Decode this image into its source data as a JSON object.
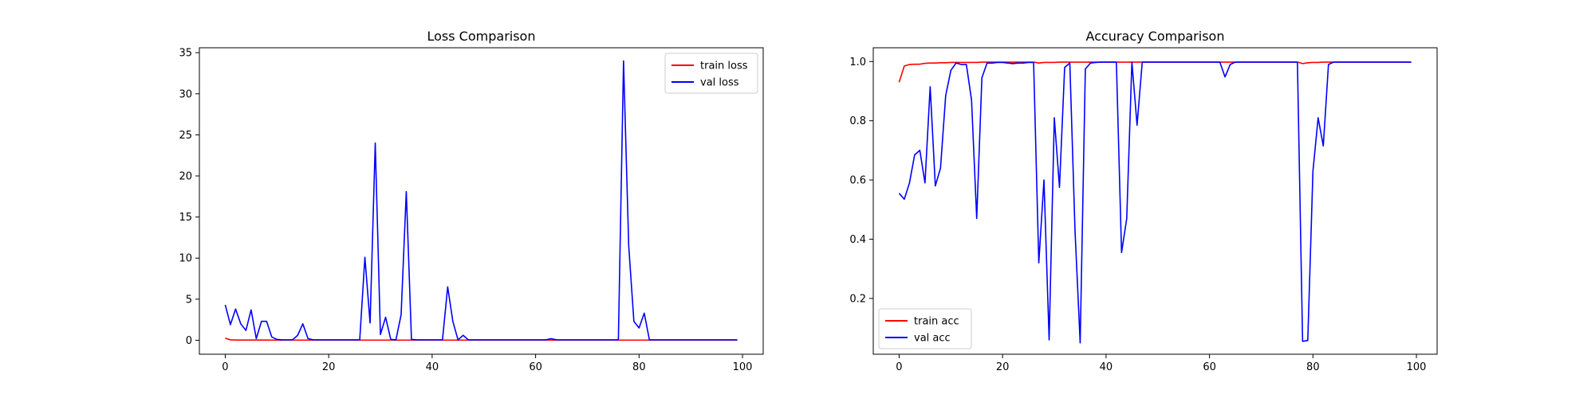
{
  "chart_data": [
    {
      "type": "line",
      "title": "Loss Comparison",
      "xlabel": "",
      "ylabel": "",
      "xlim": [
        -5,
        104
      ],
      "ylim": [
        -1.7,
        35.6
      ],
      "xticks": [
        0,
        20,
        40,
        60,
        80,
        100
      ],
      "yticks": [
        0,
        5,
        10,
        15,
        20,
        25,
        30,
        35
      ],
      "grid": false,
      "legend_position": "top-right",
      "series": [
        {
          "name": "train loss",
          "color": "#ff0000",
          "x": [
            0,
            1,
            2,
            3,
            4,
            5,
            6,
            7,
            8,
            9,
            10,
            11,
            12,
            13,
            14,
            15,
            16,
            17,
            18,
            19,
            20,
            21,
            22,
            23,
            24,
            25,
            26,
            27,
            28,
            29,
            30,
            31,
            32,
            33,
            34,
            35,
            36,
            37,
            38,
            39,
            40,
            41,
            42,
            43,
            44,
            45,
            46,
            47,
            48,
            49,
            50,
            51,
            52,
            53,
            54,
            55,
            56,
            57,
            58,
            59,
            60,
            61,
            62,
            63,
            64,
            65,
            66,
            67,
            68,
            69,
            70,
            71,
            72,
            73,
            74,
            75,
            76,
            77,
            78,
            79,
            80,
            81,
            82,
            83,
            84,
            85,
            86,
            87,
            88,
            89,
            90,
            91,
            92,
            93,
            94,
            95,
            96,
            97,
            98,
            99
          ],
          "y": [
            0.25,
            0.05,
            0.03,
            0.03,
            0.03,
            0.03,
            0.03,
            0.03,
            0.03,
            0.02,
            0.02,
            0.02,
            0.02,
            0.02,
            0.02,
            0.02,
            0.02,
            0.02,
            0.02,
            0.02,
            0.02,
            0.02,
            0.02,
            0.02,
            0.02,
            0.02,
            0.02,
            0.02,
            0.02,
            0.02,
            0.02,
            0.02,
            0.02,
            0.02,
            0.02,
            0.02,
            0.02,
            0.02,
            0.02,
            0.02,
            0.02,
            0.02,
            0.02,
            0.02,
            0.02,
            0.02,
            0.02,
            0.02,
            0.02,
            0.02,
            0.02,
            0.02,
            0.02,
            0.02,
            0.02,
            0.02,
            0.02,
            0.02,
            0.02,
            0.02,
            0.02,
            0.02,
            0.02,
            0.02,
            0.02,
            0.02,
            0.02,
            0.02,
            0.02,
            0.02,
            0.02,
            0.02,
            0.02,
            0.02,
            0.02,
            0.02,
            0.02,
            0.02,
            0.02,
            0.02,
            0.02,
            0.02,
            0.02,
            0.02,
            0.02,
            0.02,
            0.02,
            0.02,
            0.02,
            0.02,
            0.02,
            0.02,
            0.02,
            0.02,
            0.02,
            0.02,
            0.02,
            0.02,
            0.02,
            0.02
          ]
        },
        {
          "name": "val loss",
          "color": "#0000ff",
          "x": [
            0,
            1,
            2,
            3,
            4,
            5,
            6,
            7,
            8,
            9,
            10,
            11,
            12,
            13,
            14,
            15,
            16,
            17,
            18,
            19,
            20,
            21,
            22,
            23,
            24,
            25,
            26,
            27,
            28,
            29,
            30,
            31,
            32,
            33,
            34,
            35,
            36,
            37,
            38,
            39,
            40,
            41,
            42,
            43,
            44,
            45,
            46,
            47,
            48,
            49,
            50,
            51,
            52,
            53,
            54,
            55,
            56,
            57,
            58,
            59,
            60,
            61,
            62,
            63,
            64,
            65,
            66,
            67,
            68,
            69,
            70,
            71,
            72,
            73,
            74,
            75,
            76,
            77,
            78,
            79,
            80,
            81,
            82,
            83,
            84,
            85,
            86,
            87,
            88,
            89,
            90,
            91,
            92,
            93,
            94,
            95,
            96,
            97,
            98,
            99
          ],
          "y": [
            4.3,
            1.9,
            3.8,
            2,
            1.2,
            3.7,
            0.2,
            2.3,
            2.3,
            0.4,
            0.1,
            0.05,
            0.05,
            0.05,
            0.6,
            2,
            0.2,
            0.05,
            0.05,
            0.05,
            0.05,
            0.05,
            0.05,
            0.05,
            0.05,
            0.05,
            0.05,
            10.1,
            2.1,
            24,
            0.7,
            2.8,
            0.1,
            0.05,
            3.1,
            18.1,
            0.1,
            0.05,
            0.05,
            0.05,
            0.05,
            0.05,
            0.05,
            6.5,
            2.3,
            0.05,
            0.6,
            0.05,
            0.05,
            0.05,
            0.05,
            0.05,
            0.05,
            0.05,
            0.05,
            0.05,
            0.05,
            0.05,
            0.05,
            0.05,
            0.05,
            0.05,
            0.05,
            0.2,
            0.05,
            0.05,
            0.05,
            0.05,
            0.05,
            0.05,
            0.05,
            0.05,
            0.05,
            0.05,
            0.05,
            0.05,
            0.05,
            34,
            11.5,
            2.3,
            1.5,
            3.3,
            0.05,
            0.05,
            0.05,
            0.05,
            0.05,
            0.05,
            0.05,
            0.05,
            0.05,
            0.05,
            0.05,
            0.05,
            0.05,
            0.05,
            0.05,
            0.05,
            0.05,
            0.05
          ]
        }
      ]
    },
    {
      "type": "line",
      "title": "Accuracy Comparison",
      "xlabel": "",
      "ylabel": "",
      "xlim": [
        -5,
        104
      ],
      "ylim": [
        0.0115,
        1.0465
      ],
      "xticks": [
        0,
        20,
        40,
        60,
        80,
        100
      ],
      "yticks": [
        0.2,
        0.4,
        0.6,
        0.8,
        1.0
      ],
      "yticklabels": [
        "0.2",
        "0.4",
        "0.6",
        "0.8",
        "1.0"
      ],
      "grid": false,
      "legend_position": "bottom-left",
      "series": [
        {
          "name": "train acc",
          "color": "#ff0000",
          "x": [
            0,
            1,
            2,
            3,
            4,
            5,
            6,
            7,
            8,
            9,
            10,
            11,
            12,
            13,
            14,
            15,
            16,
            17,
            18,
            19,
            20,
            21,
            22,
            23,
            24,
            25,
            26,
            27,
            28,
            29,
            30,
            31,
            32,
            33,
            34,
            35,
            36,
            37,
            38,
            39,
            40,
            41,
            42,
            43,
            44,
            45,
            46,
            47,
            48,
            49,
            50,
            51,
            52,
            53,
            54,
            55,
            56,
            57,
            58,
            59,
            60,
            61,
            62,
            63,
            64,
            65,
            66,
            67,
            68,
            69,
            70,
            71,
            72,
            73,
            74,
            75,
            76,
            77,
            78,
            79,
            80,
            81,
            82,
            83,
            84,
            85,
            86,
            87,
            88,
            89,
            90,
            91,
            92,
            93,
            94,
            95,
            96,
            97,
            98,
            99
          ],
          "y": [
            0.93,
            0.985,
            0.99,
            0.991,
            0.991,
            0.994,
            0.995,
            0.995,
            0.996,
            0.996,
            0.997,
            0.997,
            0.997,
            0.997,
            0.997,
            0.997,
            0.998,
            0.998,
            0.998,
            0.998,
            0.998,
            0.998,
            0.998,
            0.998,
            0.998,
            0.998,
            0.998,
            0.995,
            0.997,
            0.997,
            0.997,
            0.998,
            0.998,
            0.998,
            0.998,
            0.998,
            0.998,
            0.998,
            0.998,
            0.998,
            0.998,
            0.998,
            0.998,
            0.998,
            0.998,
            0.998,
            0.998,
            0.998,
            0.998,
            0.998,
            0.998,
            0.998,
            0.998,
            0.998,
            0.998,
            0.998,
            0.998,
            0.998,
            0.998,
            0.998,
            0.998,
            0.998,
            0.998,
            0.998,
            0.998,
            0.998,
            0.998,
            0.998,
            0.998,
            0.998,
            0.998,
            0.998,
            0.998,
            0.998,
            0.998,
            0.998,
            0.998,
            0.998,
            0.993,
            0.996,
            0.997,
            0.997,
            0.998,
            0.998,
            0.998,
            0.998,
            0.998,
            0.998,
            0.998,
            0.998,
            0.998,
            0.998,
            0.998,
            0.998,
            0.998,
            0.998,
            0.998,
            0.998,
            0.998,
            0.998
          ]
        },
        {
          "name": "val acc",
          "color": "#0000ff",
          "x": [
            0,
            1,
            2,
            3,
            4,
            5,
            6,
            7,
            8,
            9,
            10,
            11,
            12,
            13,
            14,
            15,
            16,
            17,
            18,
            19,
            20,
            21,
            22,
            23,
            24,
            25,
            26,
            27,
            28,
            29,
            30,
            31,
            32,
            33,
            34,
            35,
            36,
            37,
            38,
            39,
            40,
            41,
            42,
            43,
            44,
            45,
            46,
            47,
            48,
            49,
            50,
            51,
            52,
            53,
            54,
            55,
            56,
            57,
            58,
            59,
            60,
            61,
            62,
            63,
            64,
            65,
            66,
            67,
            68,
            69,
            70,
            71,
            72,
            73,
            74,
            75,
            76,
            77,
            78,
            79,
            80,
            81,
            82,
            83,
            84,
            85,
            86,
            87,
            88,
            89,
            90,
            91,
            92,
            93,
            94,
            95,
            96,
            97,
            98,
            99
          ],
          "y": [
            0.555,
            0.535,
            0.59,
            0.685,
            0.7,
            0.59,
            0.915,
            0.58,
            0.64,
            0.885,
            0.97,
            0.995,
            0.99,
            0.99,
            0.87,
            0.47,
            0.945,
            0.995,
            0.995,
            0.997,
            0.997,
            0.995,
            0.993,
            0.995,
            0.995,
            0.997,
            0.997,
            0.32,
            0.6,
            0.06,
            0.81,
            0.575,
            0.98,
            0.995,
            0.43,
            0.05,
            0.975,
            0.995,
            0.997,
            0.998,
            0.998,
            0.998,
            0.998,
            0.355,
            0.47,
            0.998,
            0.785,
            0.998,
            0.998,
            0.998,
            0.998,
            0.998,
            0.998,
            0.998,
            0.998,
            0.998,
            0.998,
            0.998,
            0.998,
            0.998,
            0.998,
            0.998,
            0.998,
            0.948,
            0.99,
            0.998,
            0.998,
            0.998,
            0.998,
            0.998,
            0.998,
            0.998,
            0.998,
            0.998,
            0.998,
            0.998,
            0.998,
            0.998,
            0.055,
            0.058,
            0.63,
            0.81,
            0.715,
            0.99,
            0.998,
            0.998,
            0.998,
            0.998,
            0.998,
            0.998,
            0.998,
            0.998,
            0.998,
            0.998,
            0.998,
            0.998,
            0.998,
            0.998,
            0.998,
            0.998
          ]
        }
      ]
    }
  ]
}
